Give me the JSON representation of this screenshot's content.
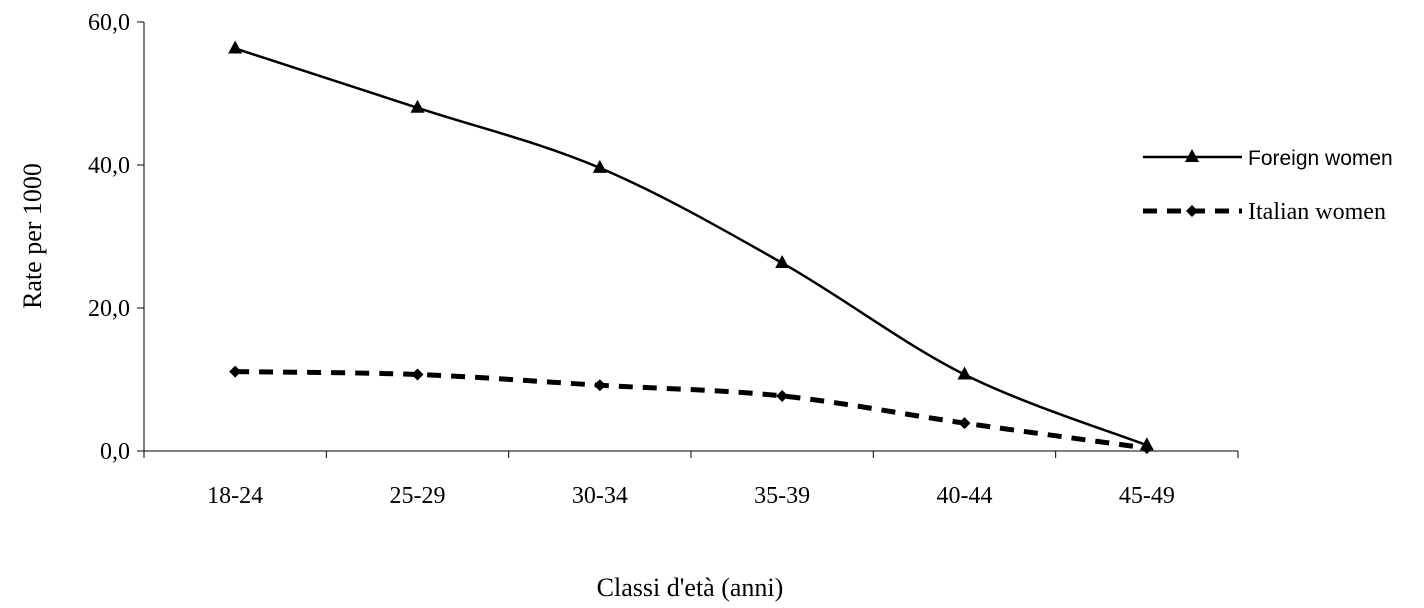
{
  "chart_data": {
    "type": "line",
    "title": "",
    "xlabel": "Classi d'età (anni)",
    "ylabel": "Rate per 1000",
    "categories": [
      "18-24",
      "25-29",
      "30-34",
      "35-39",
      "40-44",
      "45-49"
    ],
    "ylim": [
      0,
      60
    ],
    "yticks": [
      "0,0",
      "20,0",
      "40,0",
      "60,0"
    ],
    "grid": false,
    "legend_position": "right",
    "series": [
      {
        "name": "Foreign women",
        "values": [
          56.3,
          48.0,
          39.6,
          26.3,
          10.7,
          0.8
        ],
        "marker": "triangle",
        "line_style": "solid",
        "color": "#000000"
      },
      {
        "name": "Italian women",
        "values": [
          11.1,
          10.7,
          9.2,
          7.7,
          3.9,
          0.4
        ],
        "marker": "diamond",
        "line_style": "dashed",
        "color": "#000000"
      }
    ]
  }
}
